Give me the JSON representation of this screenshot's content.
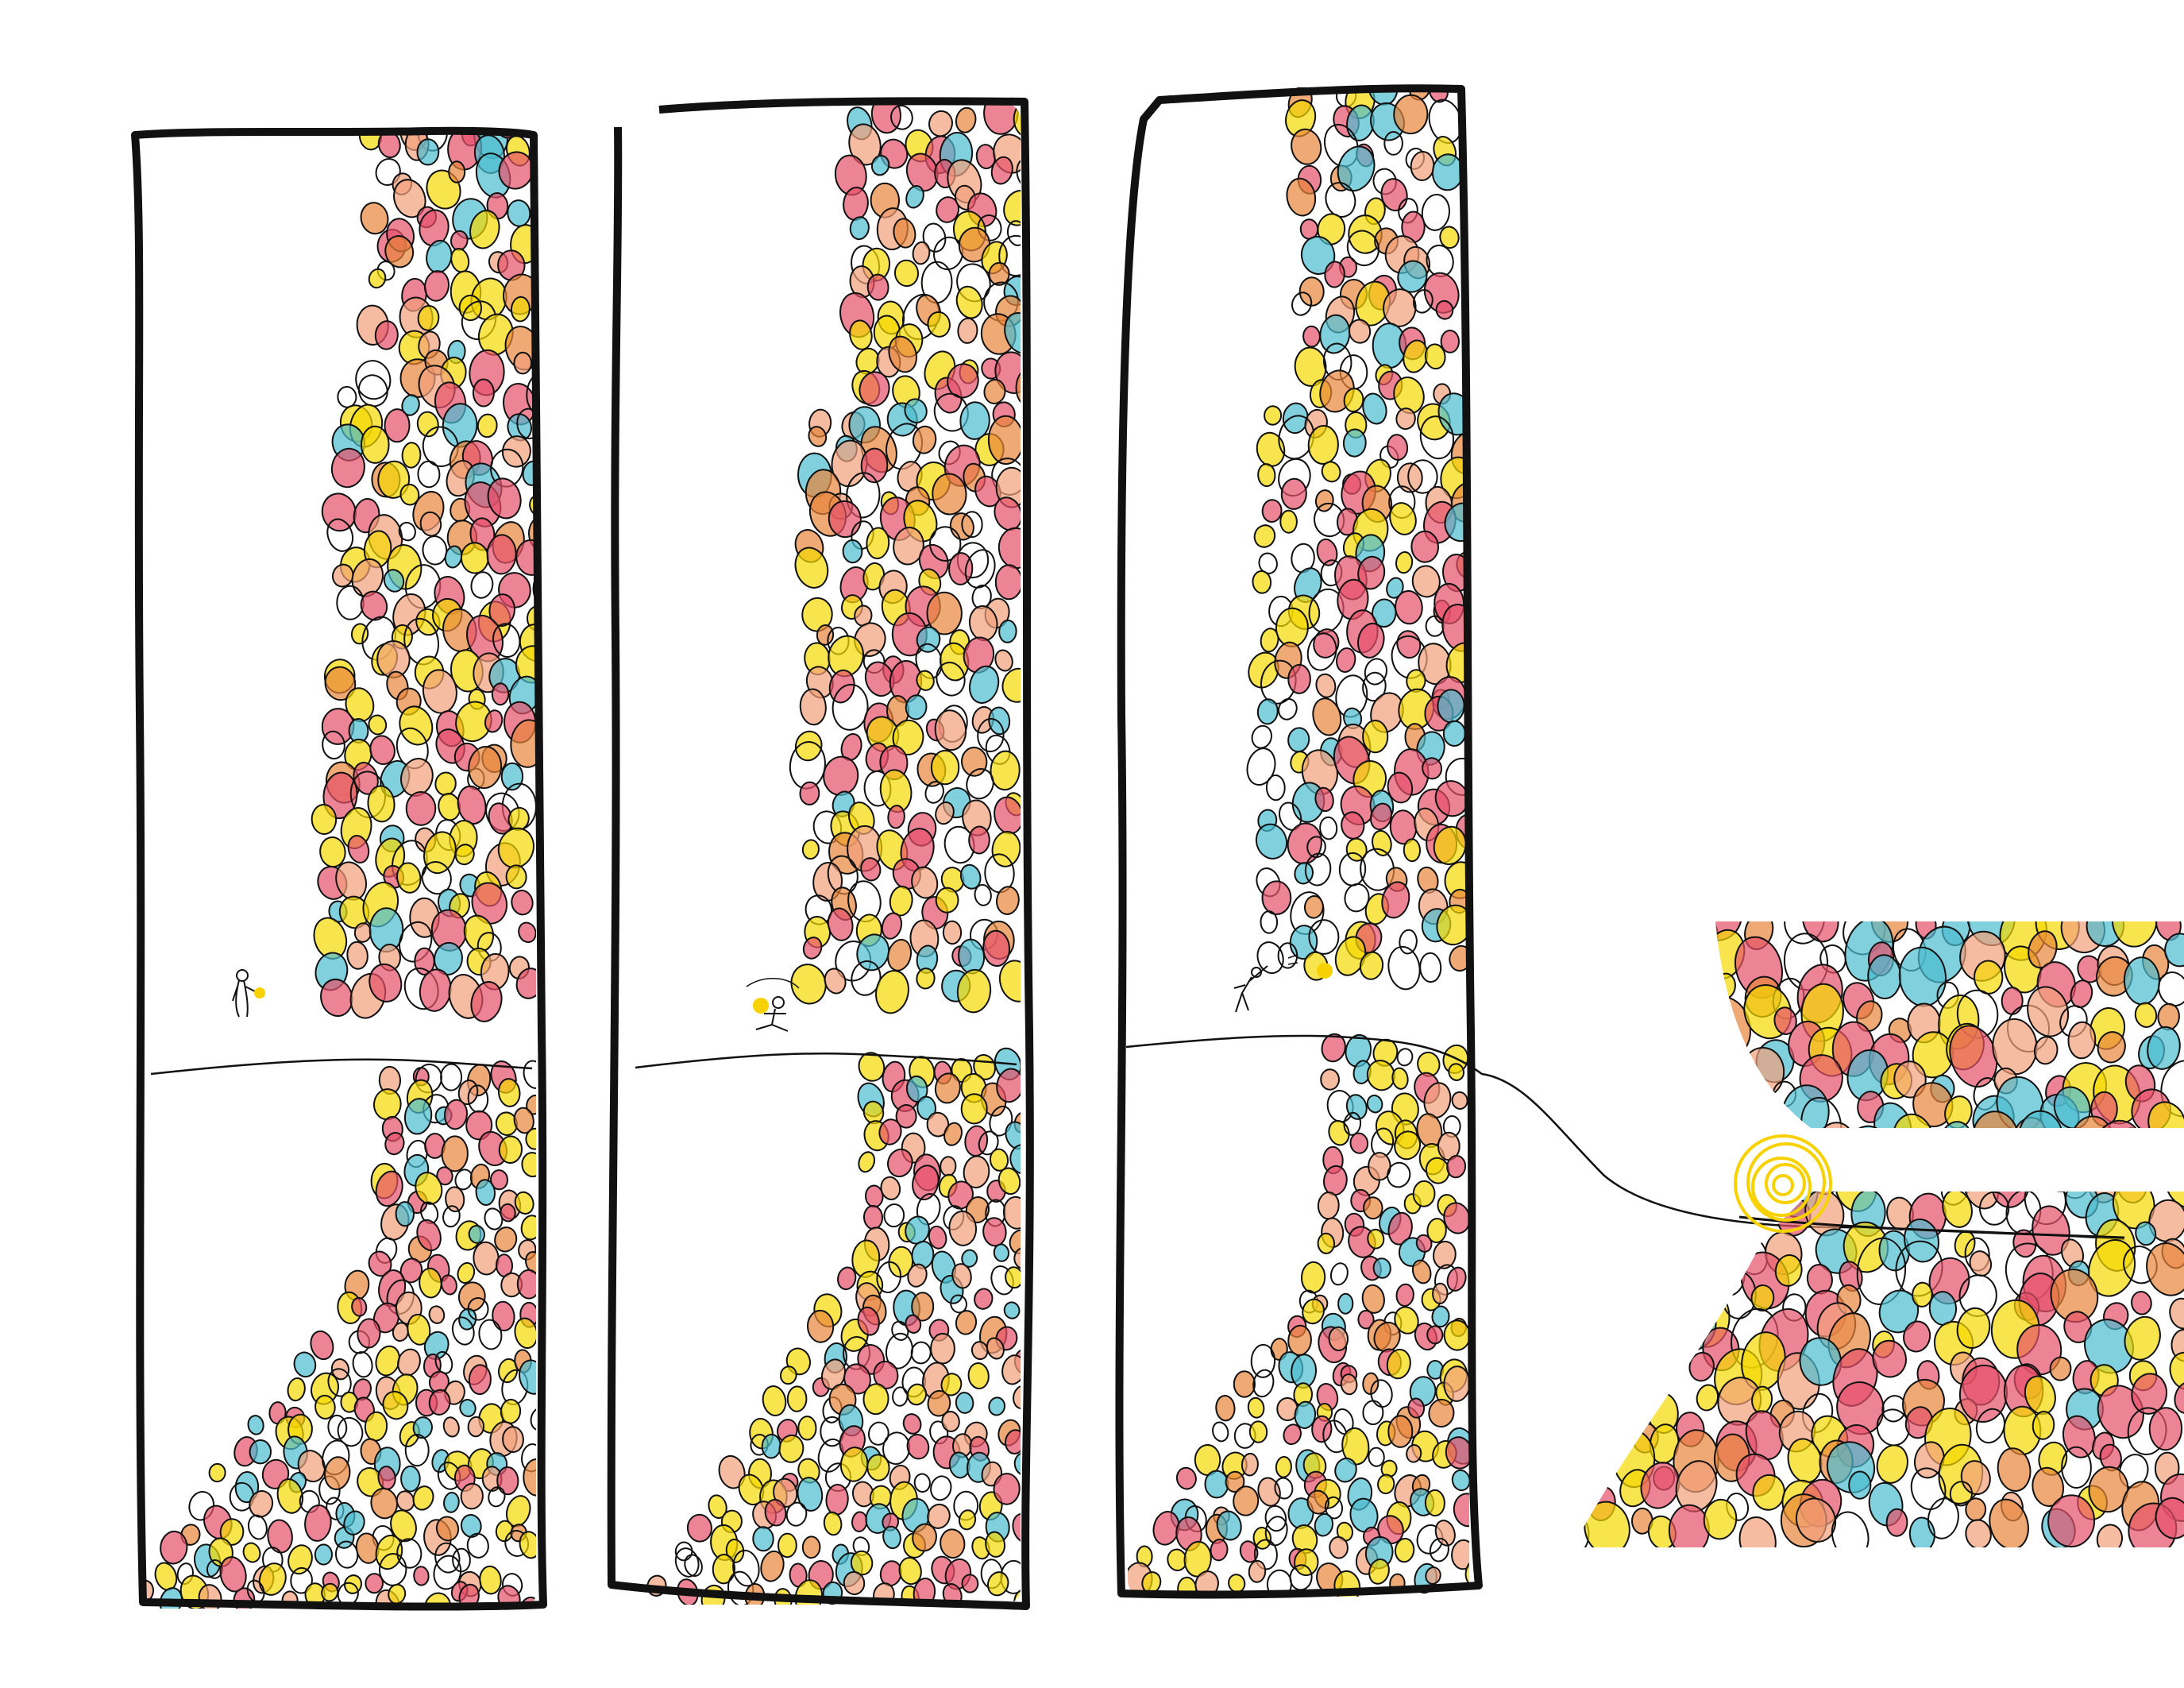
{
  "palette": {
    "yellow": "#f5d800",
    "orange": "#e8843a",
    "teal": "#4bbcd0",
    "pink": "#e6506a",
    "peach": "#f2a07a",
    "ink": "#111111",
    "ball": "#f8d200"
  },
  "panels": [
    {
      "id": "panel-1",
      "figure": "figure-holding-ball"
    },
    {
      "id": "panel-2",
      "figure": "figure-crouching-with-ball"
    },
    {
      "id": "panel-3",
      "figure": "figure-throwing-ball"
    }
  ],
  "zoom_inset": {
    "highlight": "yellow-scribble-ball",
    "line": "tightrope-line"
  }
}
